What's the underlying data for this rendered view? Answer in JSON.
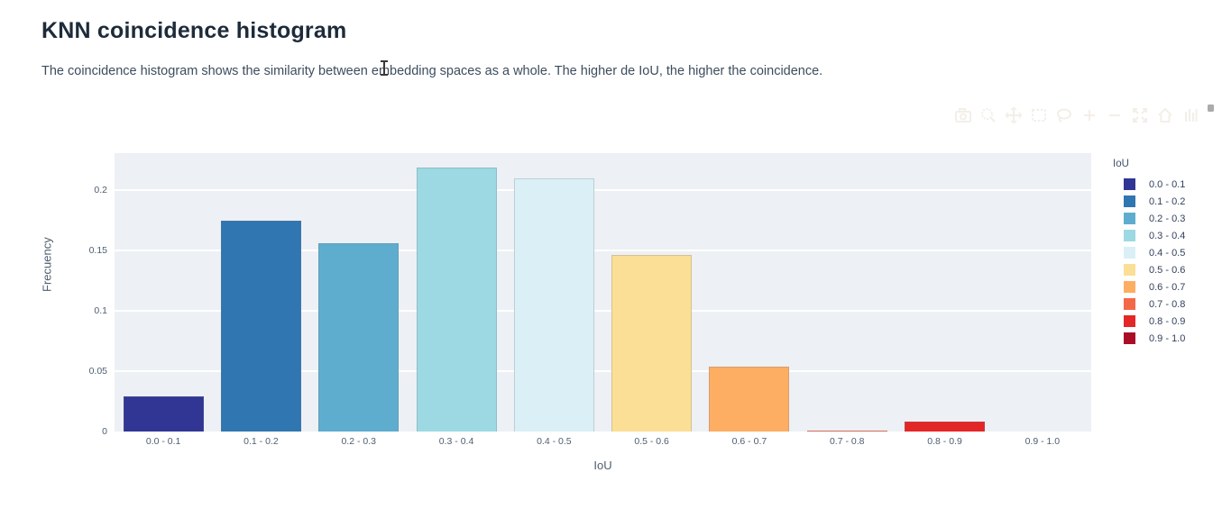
{
  "page": {
    "title": "KNN coincidence histogram",
    "subtitle": "The coincidence histogram shows the similarity between embedding spaces as a whole. The higher de IoU, the higher the coincidence."
  },
  "toolbar": {
    "icons": [
      {
        "name": "camera-icon",
        "title": "download plot"
      },
      {
        "name": "zoom-icon",
        "title": "zoom"
      },
      {
        "name": "pan-icon",
        "title": "pan"
      },
      {
        "name": "box-select-icon",
        "title": "box select"
      },
      {
        "name": "lasso-select-icon",
        "title": "lasso select"
      },
      {
        "name": "zoom-in-icon",
        "title": "zoom in"
      },
      {
        "name": "zoom-out-icon",
        "title": "zoom out"
      },
      {
        "name": "autoscale-icon",
        "title": "autoscale"
      },
      {
        "name": "reset-axes-icon",
        "title": "reset axes"
      },
      {
        "name": "plotly-logo-icon",
        "title": "plotly logo"
      }
    ],
    "icon_color": "#f3efe8"
  },
  "chart_data": {
    "type": "bar",
    "title": "KNN coincidence histogram",
    "categories": [
      "0.0 - 0.1",
      "0.1 - 0.2",
      "0.2 - 0.3",
      "0.3 - 0.4",
      "0.4 - 0.5",
      "0.5 - 0.6",
      "0.6 - 0.7",
      "0.7 - 0.8",
      "0.8 - 0.9",
      "0.9 - 1.0"
    ],
    "values": [
      0.029,
      0.175,
      0.156,
      0.219,
      0.21,
      0.146,
      0.054,
      0.001,
      0.008,
      0
    ],
    "colors": [
      "#313695",
      "#3076b1",
      "#5fadce",
      "#9cd9e3",
      "#daf0f6",
      "#fcdf96",
      "#fdae63",
      "#f4684a",
      "#e32726",
      "#aa0e27"
    ],
    "xlabel": "IoU",
    "ylabel": "Frecuency",
    "ylim": [
      0,
      0.2306
    ],
    "yticks": [
      0,
      0.05,
      0.1,
      0.15,
      0.2
    ],
    "ytick_labels": [
      "0",
      "0.05",
      "0.1",
      "0.15",
      "0.2"
    ],
    "grid": true,
    "plot_background": "#edf0f4",
    "gridline_color": "#ffffff",
    "legend": {
      "title": "IoU",
      "position": "right",
      "entries": [
        "0.0 - 0.1",
        "0.1 - 0.2",
        "0.2 - 0.3",
        "0.3 - 0.4",
        "0.4 - 0.5",
        "0.5 - 0.6",
        "0.6 - 0.7",
        "0.7 - 0.8",
        "0.8 - 0.9",
        "0.9 - 1.0"
      ]
    }
  }
}
